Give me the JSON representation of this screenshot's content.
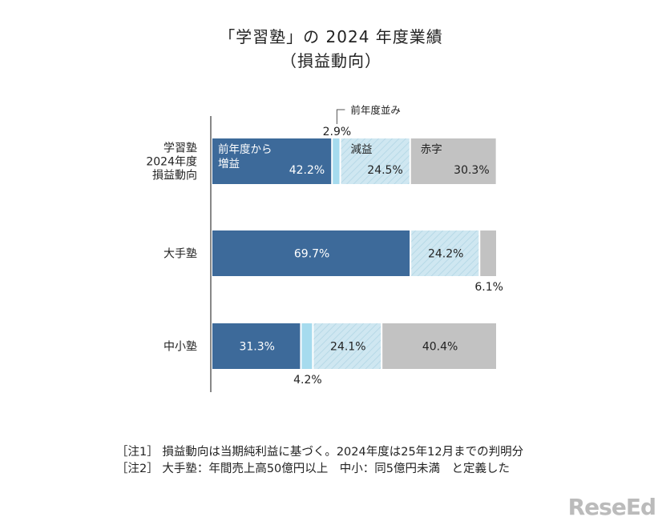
{
  "chart_data": {
    "type": "bar",
    "stacked": true,
    "orientation": "horizontal",
    "title": "「学習塾」の 2024 年度業績",
    "subtitle": "（損益動向）",
    "categories": [
      "学習塾\n2024年度\n損益動向",
      "大手塾",
      "中小塾"
    ],
    "series": [
      {
        "name": "前年度から増益",
        "values": [
          42.2,
          69.7,
          31.3
        ],
        "color": "#3d6a9a"
      },
      {
        "name": "前年度並み",
        "values": [
          2.9,
          0,
          4.2
        ],
        "color": "#a6dbee"
      },
      {
        "name": "減益",
        "values": [
          24.5,
          24.2,
          24.1
        ],
        "color": "#cfe7f1"
      },
      {
        "name": "赤字",
        "values": [
          30.3,
          6.1,
          40.4
        ],
        "color": "#c2c2c2"
      }
    ],
    "data_labels": [
      [
        "42.2%",
        "2.9%",
        "24.5%",
        "30.3%"
      ],
      [
        "69.7%",
        "",
        "24.2%",
        "6.1%"
      ],
      [
        "31.3%",
        "4.2%",
        "24.1%",
        "40.4%"
      ]
    ],
    "segment_labels": [
      "前年度から\n増益",
      "",
      "減益",
      "赤字"
    ],
    "annotation": "前年度並み",
    "xlim": [
      0,
      100
    ],
    "grid": false,
    "legend": "inline"
  },
  "notes": [
    "［注1］ 損益動向は当期純利益に基づく。2024年度は25年12月までの判明分",
    "［注2］ 大手塾：年間売上高50億円以上　中小：同5億円未満　と定義した"
  ],
  "logo": "ReseEd"
}
